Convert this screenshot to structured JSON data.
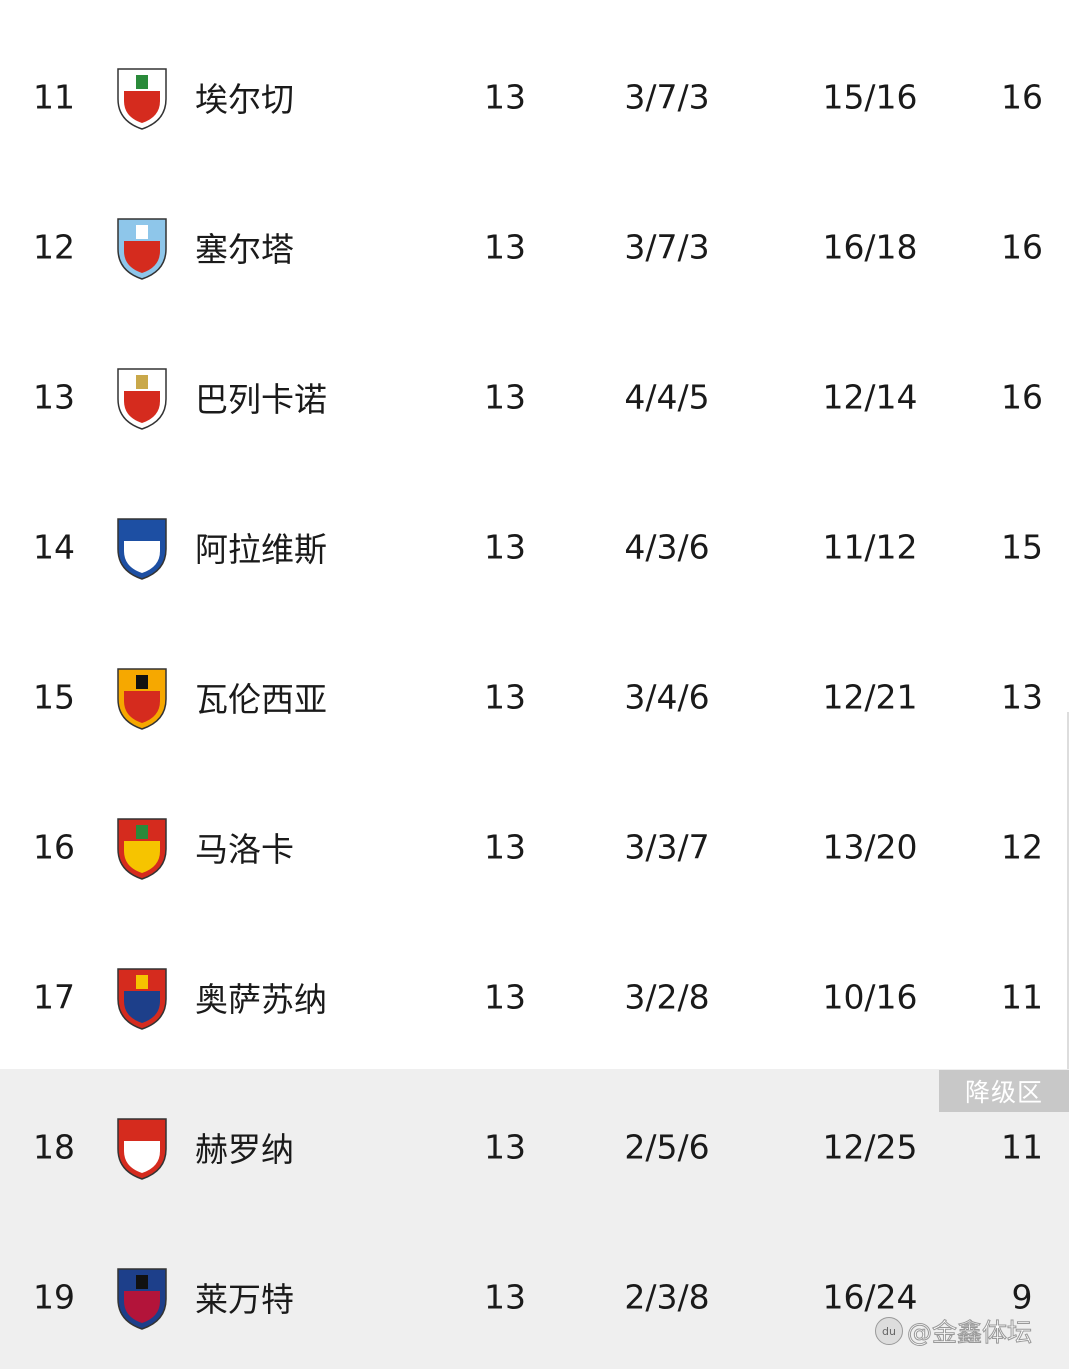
{
  "rows": [
    {
      "rank": "11",
      "team": "埃尔切",
      "played": "13",
      "wdl": "3/7/3",
      "goals": "15/16",
      "points": "16",
      "logo": "elche-crest-icon",
      "colors": [
        "#ffffff",
        "#d52b1e",
        "#2a8a3a"
      ]
    },
    {
      "rank": "12",
      "team": "塞尔塔",
      "played": "13",
      "wdl": "3/7/3",
      "goals": "16/18",
      "points": "16",
      "logo": "celta-crest-icon",
      "colors": [
        "#8ec6ea",
        "#d52b1e",
        "#ffffff"
      ]
    },
    {
      "rank": "13",
      "team": "巴列卡诺",
      "played": "13",
      "wdl": "4/4/5",
      "goals": "12/14",
      "points": "16",
      "logo": "rayo-crest-icon",
      "colors": [
        "#ffffff",
        "#d52b1e",
        "#c9a84a"
      ]
    },
    {
      "rank": "14",
      "team": "阿拉维斯",
      "played": "13",
      "wdl": "4/3/6",
      "goals": "11/12",
      "points": "15",
      "logo": "alaves-crest-icon",
      "colors": [
        "#1d4fa3",
        "#ffffff",
        "#1d4fa3"
      ]
    },
    {
      "rank": "15",
      "team": "瓦伦西亚",
      "played": "13",
      "wdl": "3/4/6",
      "goals": "12/21",
      "points": "13",
      "logo": "valencia-crest-icon",
      "colors": [
        "#f6a800",
        "#d52b1e",
        "#111111"
      ]
    },
    {
      "rank": "16",
      "team": "马洛卡",
      "played": "13",
      "wdl": "3/3/7",
      "goals": "13/20",
      "points": "12",
      "logo": "mallorca-crest-icon",
      "colors": [
        "#d52b1e",
        "#f6c400",
        "#2a8a3a"
      ]
    },
    {
      "rank": "17",
      "team": "奥萨苏纳",
      "played": "13",
      "wdl": "3/2/8",
      "goals": "10/16",
      "points": "11",
      "logo": "osasuna-crest-icon",
      "colors": [
        "#d52b1e",
        "#1d3f8a",
        "#f6c400"
      ]
    },
    {
      "rank": "18",
      "team": "赫罗纳",
      "played": "13",
      "wdl": "2/5/6",
      "goals": "12/25",
      "points": "11",
      "logo": "girona-crest-icon",
      "colors": [
        "#d52b1e",
        "#ffffff",
        "#d52b1e"
      ]
    },
    {
      "rank": "19",
      "team": "莱万特",
      "played": "13",
      "wdl": "2/3/8",
      "goals": "16/24",
      "points": "9",
      "logo": "levante-crest-icon",
      "colors": [
        "#1d3f8a",
        "#b3143a",
        "#111111"
      ]
    }
  ],
  "relegation_label": "降级区",
  "relegation_color": "#c8c8c8",
  "zone_background": "#efefef",
  "watermark": {
    "text": "@金鑫体坛",
    "logo_text": "du"
  }
}
